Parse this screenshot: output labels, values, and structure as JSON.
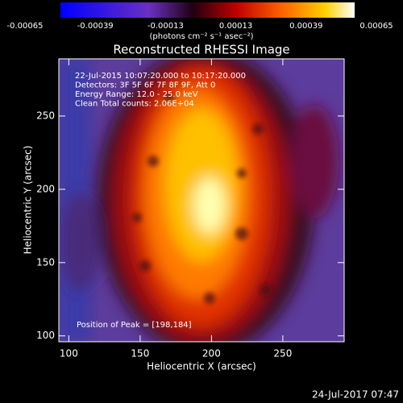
{
  "chart_data": {
    "type": "image",
    "title": "Reconstructed RHESSI Image",
    "colorbar": {
      "lim": [
        -0.00065,
        0.00065
      ],
      "ticks": [
        -0.00065,
        -0.00039,
        -0.00013,
        0.00013,
        0.00039,
        0.00065
      ],
      "label": "(photons cm⁻² s⁻¹ asec⁻²)"
    },
    "x_label": "Heliocentric X (arcsec)",
    "y_label": "Heliocentric Y (arcsec)",
    "xlim": [
      93,
      293
    ],
    "ylim": [
      96,
      289
    ],
    "xticks": [
      100,
      150,
      200,
      250
    ],
    "yticks": [
      100,
      150,
      200,
      250
    ],
    "annotations": [
      "22-Jul-2015 10:07:20.000 to 10:17:20.000",
      "Detectors: 3F 5F 6F 7F 8F 9F, Att 0",
      "Energy Range: 12.0 - 25.0 keV",
      "Clean     Total counts: 2.06E+04"
    ],
    "peak_label": "Position of Peak = [198,184]",
    "timestamp": "24-Jul-2017 07:47"
  }
}
